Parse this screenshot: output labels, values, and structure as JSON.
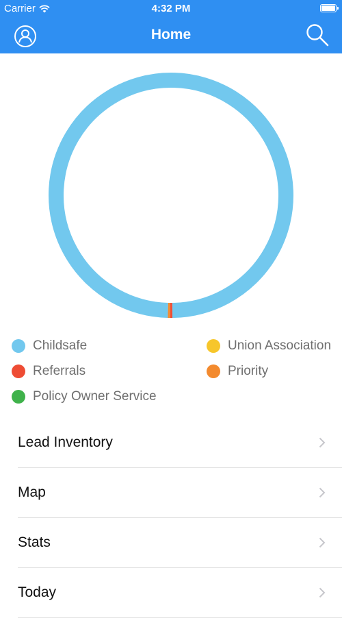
{
  "status_bar": {
    "carrier": "Carrier",
    "time": "4:32 PM"
  },
  "nav": {
    "title": "Home",
    "left_icon": "user-circle-icon",
    "right_icon": "search-icon",
    "color": "#2f8ff2"
  },
  "chart_data": {
    "type": "pie",
    "title": "",
    "categories": [
      "Childsafe",
      "Union Association",
      "Referrals",
      "Priority",
      "Policy Owner Service"
    ],
    "values": [
      99.4,
      0,
      0.3,
      0.3,
      0
    ],
    "colors": [
      "#72c8ee",
      "#f7c62b",
      "#ee4c34",
      "#f38a2e",
      "#3fb24b"
    ],
    "legend": "bottom"
  },
  "legend": {
    "items": [
      {
        "label": "Childsafe",
        "color": "#72c8ee"
      },
      {
        "label": "Union Association",
        "color": "#f7c62b"
      },
      {
        "label": "Referrals",
        "color": "#ee4c34"
      },
      {
        "label": "Priority",
        "color": "#f38a2e"
      },
      {
        "label": "Policy Owner Service",
        "color": "#3fb24b"
      }
    ]
  },
  "menu": {
    "items": [
      {
        "label": "Lead Inventory"
      },
      {
        "label": "Map"
      },
      {
        "label": "Stats"
      },
      {
        "label": "Today"
      }
    ]
  }
}
